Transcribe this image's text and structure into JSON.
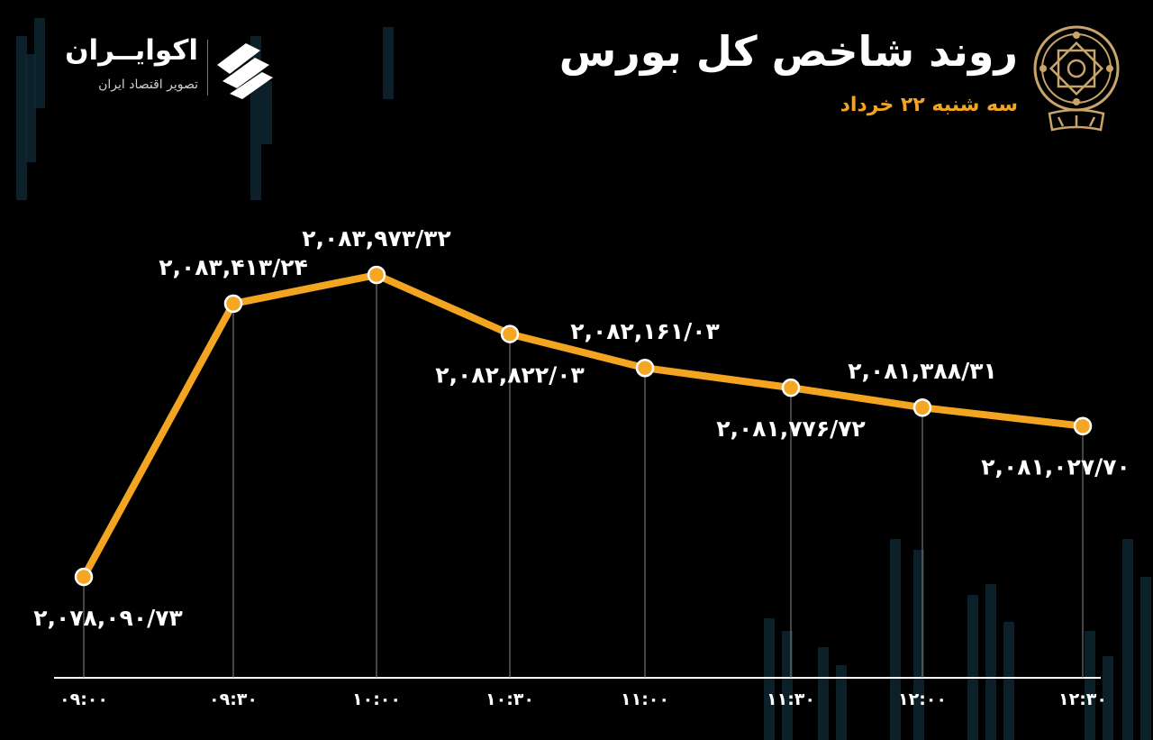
{
  "header": {
    "title": "روند شاخص کل بورس",
    "subtitle": "سه شنبه ۲۲ خرداد"
  },
  "brand": {
    "name": "اکوایــران",
    "tagline": "تصویر اقتصاد ایران"
  },
  "icons": {
    "emblem": "stock-exchange-emblem-icon",
    "brand_logo": "ecoiran-logo-icon"
  },
  "colors": {
    "background": "#000000",
    "line": "#f3a521",
    "accent": "#f3a521",
    "text": "#ffffff"
  },
  "chart_data": {
    "type": "line",
    "x": [
      "۰۹:۰۰",
      "۰۹:۳۰",
      "۱۰:۰۰",
      "۱۰:۳۰",
      "۱۱:۰۰",
      "۱۱:۳۰",
      "۱۲:۰۰",
      "۱۲:۳۰"
    ],
    "values": [
      2078090.73,
      2083413.24,
      2083973.32,
      2082822.03,
      2082161.03,
      2081776.72,
      2081388.31,
      2081027.7
    ],
    "data_labels": [
      "۲,۰۷۸,۰۹۰/۷۳",
      "۲,۰۸۳,۴۱۳/۲۴",
      "۲,۰۸۳,۹۷۳/۳۲",
      "۲,۰۸۲,۸۲۲/۰۳",
      "۲,۰۸۲,۱۶۱/۰۳",
      "۲,۰۸۱,۷۷۶/۷۲",
      "۲,۰۸۱,۳۸۸/۳۱",
      "۲,۰۸۱,۰۲۷/۷۰"
    ],
    "label_position": [
      "below",
      "above",
      "above",
      "below",
      "above",
      "below",
      "above",
      "below"
    ],
    "title": "روند شاخص کل بورس",
    "xlabel": "",
    "ylabel": "",
    "grid": false,
    "legend": "none"
  }
}
